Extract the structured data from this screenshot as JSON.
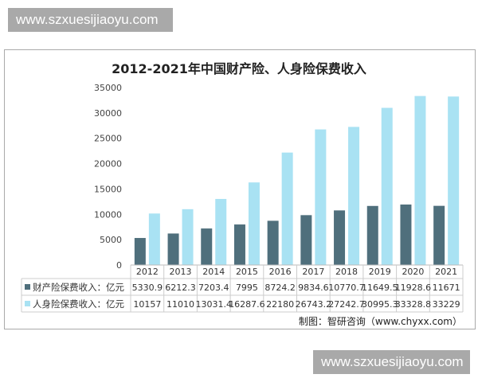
{
  "watermark_top": "www.szxuesijiaoyu.com",
  "watermark_bottom": "www.szxuesijiaoyu.com",
  "credit": "制图：智研咨询（www.chyxx.com）",
  "colors": {
    "series1": "#4f6f7c",
    "series2": "#a9e2f3"
  },
  "chart_data": {
    "type": "bar",
    "title": "2012-2021年中国财产险、人身险保费收入",
    "categories": [
      "2012",
      "2013",
      "2014",
      "2015",
      "2016",
      "2017",
      "2018",
      "2019",
      "2020",
      "2021"
    ],
    "series": [
      {
        "name": "财产险保费收入：亿元",
        "values": [
          5330.9,
          6212.3,
          7203.4,
          7995,
          8724.2,
          9834.6,
          10770.7,
          11649.5,
          11928.6,
          11671
        ]
      },
      {
        "name": "人身险保费收入：亿元",
        "values": [
          10157,
          11010,
          13031.4,
          16287.6,
          22180,
          26743.2,
          27242.7,
          30995.3,
          33328.8,
          33229
        ]
      }
    ],
    "yticks": [
      0,
      5000,
      10000,
      15000,
      20000,
      25000,
      30000,
      35000
    ],
    "ylim": [
      0,
      35000
    ],
    "grid": false,
    "legend": "data-table"
  }
}
